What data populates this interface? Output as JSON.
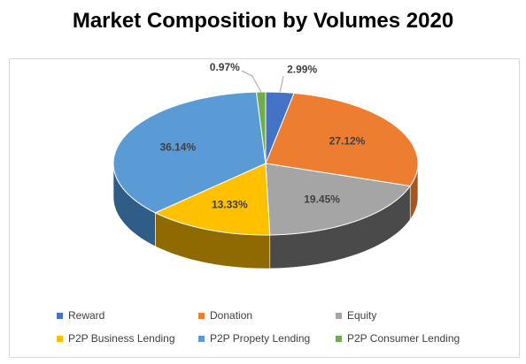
{
  "title": "Market Composition by Volumes 2020",
  "chart_data": {
    "type": "pie",
    "title": "Market Composition by Volumes 2020",
    "series": [
      {
        "name": "Reward",
        "value": 2.99,
        "label": "2.99%",
        "color": "#4472C4",
        "side": "#2E4E89"
      },
      {
        "name": "Donation",
        "value": 27.12,
        "label": "27.12%",
        "color": "#ED7D31",
        "side": "#A8561F"
      },
      {
        "name": "Equity",
        "value": 19.45,
        "label": "19.45%",
        "color": "#A5A5A5",
        "side": "#4A4A4A"
      },
      {
        "name": "P2P Business Lending",
        "value": 13.33,
        "label": "13.33%",
        "color": "#FFC000",
        "side": "#8E6A00"
      },
      {
        "name": "P2P Propety Lending",
        "value": 36.14,
        "label": "36.14%",
        "color": "#5B9BD5",
        "side": "#2F5D88"
      },
      {
        "name": "P2P Consumer Lending",
        "value": 0.97,
        "label": "0.97%",
        "color": "#70AD47",
        "side": "#3D6A22"
      }
    ],
    "legend_position": "bottom"
  }
}
